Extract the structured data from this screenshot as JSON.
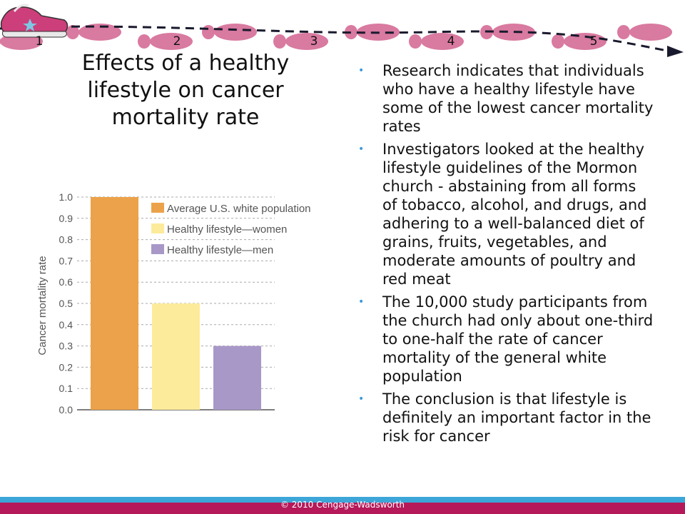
{
  "header": {
    "steps": [
      "1",
      "2",
      "3",
      "4",
      "5"
    ],
    "colors": {
      "footprint": "#d97aa0",
      "shoe": "#cc3f7a",
      "arrow": "#1a1a2e"
    }
  },
  "slide": {
    "title": "Effects of a healthy lifestyle on cancer mortality rate",
    "bullets": [
      "Research indicates that individuals who have a healthy lifestyle have some of the lowest cancer mortality rates",
      "Investigators looked at the healthy lifestyle guidelines of the Mormon church - abstaining from all forms of tobacco, alcohol, and drugs, and adhering to a well-balanced diet of grains, fruits, vegetables, and moderate amounts of poultry and red meat",
      "The 10,000 study participants from the church had only about one-third to one-half the rate of cancer mortality of the general white population",
      "The conclusion is that lifestyle is definitely an important factor in the risk for cancer"
    ]
  },
  "chart_data": {
    "type": "bar",
    "categories": [
      "Average U.S. white population",
      "Healthy lifestyle—women",
      "Healthy lifestyle—men"
    ],
    "values": [
      1.0,
      0.5,
      0.3
    ],
    "colors": [
      "#eca24a",
      "#fdeb9c",
      "#a898c8"
    ],
    "ylabel": "Cancer mortality rate",
    "xlabel": "",
    "ylim": [
      0,
      1.0
    ],
    "yticks": [
      "0.0",
      "0.1",
      "0.2",
      "0.3",
      "0.4",
      "0.5",
      "0.6",
      "0.7",
      "0.8",
      "0.9",
      "1.0"
    ],
    "grid": true,
    "legend": "top-right"
  },
  "footer": {
    "copyright": "© 2010 Cengage-Wadsworth"
  }
}
